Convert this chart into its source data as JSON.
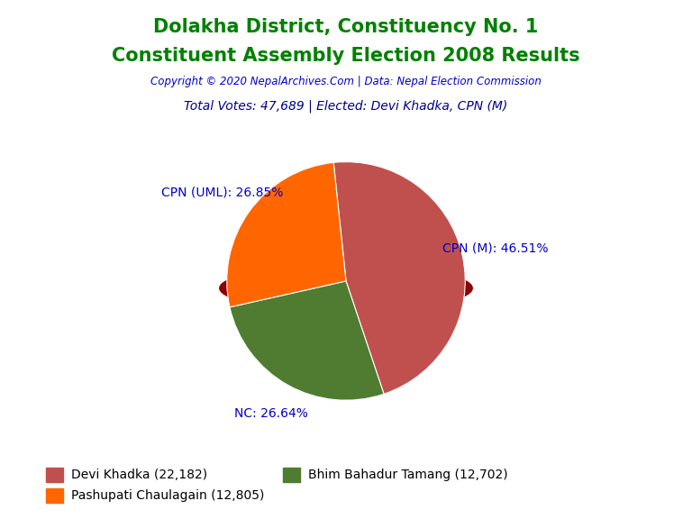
{
  "title_line1": "Dolakha District, Constituency No. 1",
  "title_line2": "Constituent Assembly Election 2008 Results",
  "title_color": "#008000",
  "copyright_text": "Copyright © 2020 NepalArchives.Com | Data: Nepal Election Commission",
  "copyright_color": "#0000CD",
  "total_votes_text": "Total Votes: 47,689 | Elected: Devi Khadka, CPN (M)",
  "total_votes_color": "#00008B",
  "slices": [
    {
      "label": "CPN (M)",
      "value": 22182,
      "pct": 46.51,
      "color": "#C0504D"
    },
    {
      "label": "NC",
      "value": 12702,
      "pct": 26.64,
      "color": "#4F7C30"
    },
    {
      "label": "CPN (UML)",
      "value": 12805,
      "pct": 26.85,
      "color": "#FF6600"
    }
  ],
  "legend_entries": [
    {
      "label": "Devi Khadka (22,182)",
      "color": "#C0504D"
    },
    {
      "label": "Pashupati Chaulagain (12,805)",
      "color": "#FF6600"
    },
    {
      "label": "Bhim Bahadur Tamang (12,702)",
      "color": "#4F7C30"
    }
  ],
  "label_color": "#0000CD",
  "startangle": 96,
  "shadow_color": "#8B0000",
  "edge_color": "#ffffff",
  "background": "#ffffff"
}
